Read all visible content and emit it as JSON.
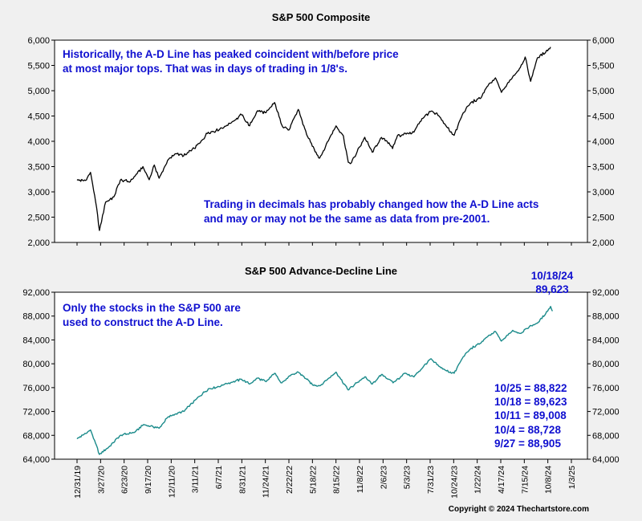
{
  "chart_data": [
    {
      "type": "line",
      "title": "S&P 500 Composite",
      "ylim": [
        2000,
        6000
      ],
      "yticks": [
        2000,
        2500,
        3000,
        3500,
        4000,
        4500,
        5000,
        5500,
        6000
      ],
      "ytick_labels": [
        "2,000",
        "2,500",
        "3,000",
        "3,500",
        "4,000",
        "4,500",
        "5,000",
        "5,500",
        "6,000"
      ],
      "grid": false,
      "color": "#000000",
      "series": [
        {
          "x": [
            "2019-12-31",
            "2020-01-31",
            "2020-02-19",
            "2020-03-09",
            "2020-03-23",
            "2020-04-15",
            "2020-05-15",
            "2020-06-08",
            "2020-07-15",
            "2020-08-31",
            "2020-09-23",
            "2020-10-12",
            "2020-10-30",
            "2020-11-30",
            "2020-12-31",
            "2021-01-29",
            "2021-02-26",
            "2021-03-31",
            "2021-04-30",
            "2021-05-28",
            "2021-06-30",
            "2021-07-30",
            "2021-08-31",
            "2021-09-30",
            "2021-10-29",
            "2021-11-30",
            "2021-12-31",
            "2022-01-27",
            "2022-02-23",
            "2022-03-29",
            "2022-04-29",
            "2022-05-20",
            "2022-06-16",
            "2022-07-29",
            "2022-08-16",
            "2022-09-12",
            "2022-09-30",
            "2022-10-12",
            "2022-11-30",
            "2022-12-28",
            "2023-01-31",
            "2023-02-28",
            "2023-03-13",
            "2023-03-31",
            "2023-05-31",
            "2023-06-30",
            "2023-07-31",
            "2023-08-31",
            "2023-09-29",
            "2023-10-27",
            "2023-11-30",
            "2023-12-29",
            "2024-01-31",
            "2024-02-29",
            "2024-03-28",
            "2024-04-19",
            "2024-05-31",
            "2024-06-28",
            "2024-07-16",
            "2024-08-05",
            "2024-08-30",
            "2024-09-30",
            "2024-10-18"
          ],
          "y": [
            3230,
            3225,
            3386,
            2800,
            2237,
            2800,
            2900,
            3230,
            3200,
            3500,
            3240,
            3530,
            3270,
            3620,
            3756,
            3714,
            3811,
            3972,
            4180,
            4204,
            4297,
            4395,
            4522,
            4307,
            4605,
            4567,
            4766,
            4320,
            4225,
            4630,
            4131,
            3900,
            3666,
            4130,
            4305,
            4110,
            3585,
            3577,
            4080,
            3783,
            4076,
            3970,
            3855,
            4109,
            4180,
            4450,
            4588,
            4507,
            4288,
            4117,
            4567,
            4770,
            4845,
            5096,
            5254,
            4967,
            5277,
            5460,
            5667,
            5186,
            5648,
            5762,
            5864
          ]
        }
      ],
      "annotations": [
        "Historically, the A-D Line has peaked coincident with/before price",
        "at most major tops.  That was in days of trading in 1/8's.",
        "Trading in decimals has probably changed how the A-D Line acts",
        "and may or may not be the same as data from pre-2001."
      ]
    },
    {
      "type": "line",
      "title": "S&P 500 Advance-Decline Line",
      "ylim": [
        64000,
        92000
      ],
      "yticks": [
        64000,
        68000,
        72000,
        76000,
        80000,
        84000,
        88000,
        92000
      ],
      "ytick_labels": [
        "64,000",
        "68,000",
        "72,000",
        "76,000",
        "80,000",
        "84,000",
        "88,000",
        "92,000"
      ],
      "grid": false,
      "color": "#1a8a8a",
      "x_tick_labels": [
        "12/31/19",
        "3/27/20",
        "6/23/20",
        "9/17/20",
        "12/11/20",
        "3/11/21",
        "6/7/21",
        "8/31/21",
        "11/24/21",
        "2/22/22",
        "5/18/22",
        "8/15/22",
        "11/8/22",
        "2/6/23",
        "5/3/23",
        "7/31/23",
        "10/24/23",
        "1/22/24",
        "4/17/24",
        "7/15/24",
        "10/8/24",
        "1/3/25"
      ],
      "series": [
        {
          "x": [
            "2019-12-31",
            "2020-02-19",
            "2020-03-23",
            "2020-04-30",
            "2020-06-08",
            "2020-07-31",
            "2020-09-02",
            "2020-10-30",
            "2020-11-30",
            "2020-12-31",
            "2021-01-29",
            "2021-03-15",
            "2021-04-30",
            "2021-05-28",
            "2021-06-30",
            "2021-08-31",
            "2021-09-30",
            "2021-10-29",
            "2021-11-30",
            "2021-12-31",
            "2022-01-27",
            "2022-02-28",
            "2022-03-29",
            "2022-04-29",
            "2022-05-20",
            "2022-06-16",
            "2022-08-16",
            "2022-09-30",
            "2022-10-31",
            "2022-11-30",
            "2022-12-28",
            "2023-01-31",
            "2023-02-28",
            "2023-03-15",
            "2023-04-28",
            "2023-05-31",
            "2023-07-31",
            "2023-08-31",
            "2023-09-29",
            "2023-10-27",
            "2023-11-30",
            "2023-12-29",
            "2024-01-31",
            "2024-02-29",
            "2024-03-28",
            "2024-04-19",
            "2024-05-31",
            "2024-06-28",
            "2024-07-31",
            "2024-08-30",
            "2024-09-30",
            "2024-10-18",
            "2024-10-25"
          ],
          "y": [
            67400,
            68900,
            64800,
            66200,
            68000,
            68500,
            69800,
            69200,
            71000,
            71600,
            72000,
            74000,
            75800,
            76000,
            76600,
            77400,
            76600,
            77600,
            77000,
            78400,
            76800,
            78000,
            78600,
            77400,
            76500,
            76300,
            78600,
            75600,
            76800,
            77800,
            76600,
            78200,
            77400,
            76800,
            78400,
            77800,
            80800,
            79600,
            78800,
            78400,
            81200,
            82600,
            83400,
            84600,
            85400,
            83800,
            85600,
            85100,
            86200,
            86800,
            88400,
            89623,
            88822
          ]
        }
      ],
      "annotations": [
        "Only the stocks in the S&P 500 are",
        "used to construct the A-D Line."
      ],
      "last_point_label": [
        "10/18/24",
        "89,623"
      ],
      "recent_values": [
        "10/25 = 88,822",
        "10/18 = 89,623",
        "10/11 = 89,008",
        "10/4 = 88,728",
        "9/27 = 88,905"
      ]
    }
  ],
  "copyright": "Copyright © 2024 Thechartstore.com"
}
